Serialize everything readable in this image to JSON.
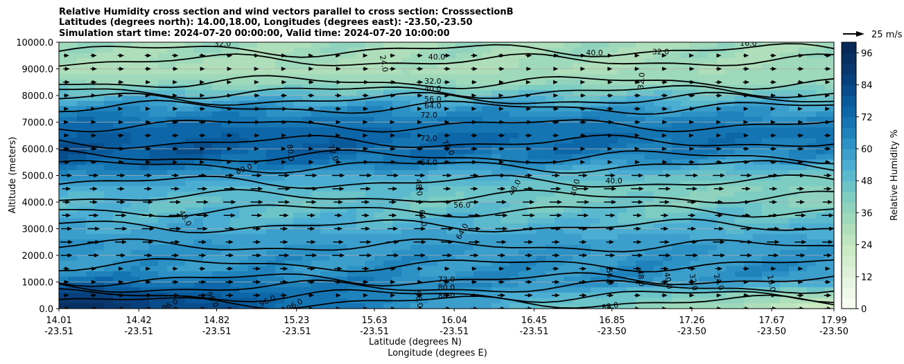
{
  "chart_data": {
    "type": "heatmap",
    "title_lines": [
      "Relative Humidity cross section and wind vectors parallel to cross section: CrosssectionB",
      "Latitudes (degrees north): 14.00,18.00, Longitudes (degrees east): -23.50,-23.50",
      "Simulation start time: 2024-07-20 00:00:00, Valid time: 2024-07-20 10:00:00"
    ],
    "ylabel": "Altitude (meters)",
    "xlabel_lat": "Latitude (degrees N)",
    "xlabel_lon": "Longitude (degrees E)",
    "ylim": [
      0,
      10000
    ],
    "y_ticks": [
      "0.0",
      "1000.0",
      "2000.0",
      "3000.0",
      "4000.0",
      "5000.0",
      "6000.0",
      "7000.0",
      "8000.0",
      "9000.0",
      "10000.0"
    ],
    "y_tick_values": [
      0,
      1000,
      2000,
      3000,
      4000,
      5000,
      6000,
      7000,
      8000,
      9000,
      10000
    ],
    "xlim": [
      14.01,
      17.99
    ],
    "x_ticks": [
      {
        "lat": "14.01",
        "lon": "-23.51",
        "value": 14.01
      },
      {
        "lat": "14.42",
        "lon": "-23.51",
        "value": 14.42
      },
      {
        "lat": "14.82",
        "lon": "-23.51",
        "value": 14.82
      },
      {
        "lat": "15.23",
        "lon": "-23.51",
        "value": 15.23
      },
      {
        "lat": "15.63",
        "lon": "-23.51",
        "value": 15.63
      },
      {
        "lat": "16.04",
        "lon": "-23.51",
        "value": 16.04
      },
      {
        "lat": "16.45",
        "lon": "-23.51",
        "value": 16.45
      },
      {
        "lat": "16.85",
        "lon": "-23.50",
        "value": 16.85
      },
      {
        "lat": "17.26",
        "lon": "-23.50",
        "value": 17.26
      },
      {
        "lat": "17.67",
        "lon": "-23.50",
        "value": 17.67
      },
      {
        "lat": "17.99",
        "lon": "-23.50",
        "value": 17.99
      }
    ],
    "grid": "horizontal",
    "colorbar": {
      "label": "Relative Humidity %",
      "min": 0,
      "max": 100,
      "step": 4,
      "ticks": [
        "0",
        "12",
        "24",
        "36",
        "48",
        "60",
        "72",
        "84",
        "96"
      ],
      "tick_values": [
        0,
        12,
        24,
        36,
        48,
        60,
        72,
        84,
        96
      ],
      "colors": [
        "#f7fcf0",
        "#eff9e9",
        "#e6f5e1",
        "#ddf1d8",
        "#d3eecd",
        "#c9eac3",
        "#bde5bf",
        "#afdfba",
        "#9fd9bb",
        "#8fd3bf",
        "#7ecdc2",
        "#6cc4c8",
        "#5bb9ce",
        "#4badd1",
        "#3c9fcb",
        "#2c91c4",
        "#1f82bb",
        "#1574b2",
        "#0c66a8",
        "#085a9b",
        "#084c8b",
        "#08407d",
        "#08386e",
        "#082f61",
        "#082858"
      ]
    },
    "quiver_key": {
      "label": "25 m/s",
      "speed": 25
    },
    "rh_profile": {
      "altitude": [
        0,
        500,
        1000,
        1500,
        2000,
        2500,
        3000,
        3500,
        4000,
        4500,
        5000,
        5500,
        6000,
        6500,
        7000,
        7500,
        8000,
        8500,
        9000,
        9500,
        10000
      ],
      "values_south": [
        96,
        88,
        72,
        60,
        62,
        60,
        56,
        52,
        50,
        56,
        64,
        76,
        80,
        76,
        72,
        64,
        52,
        36,
        30,
        32,
        34
      ],
      "values_north": [
        20,
        32,
        58,
        62,
        60,
        58,
        52,
        46,
        40,
        38,
        44,
        56,
        66,
        70,
        66,
        58,
        46,
        34,
        32,
        34,
        32
      ]
    },
    "contour_labels": [
      {
        "text": "32.0",
        "x": 14.85,
        "y": 9950,
        "rot": 0
      },
      {
        "text": "40.0",
        "x": 15.95,
        "y": 9450,
        "rot": 0
      },
      {
        "text": "40.0",
        "x": 16.76,
        "y": 9610,
        "rot": 0
      },
      {
        "text": "32.0",
        "x": 17.1,
        "y": 9650,
        "rot": 0
      },
      {
        "text": "16.0",
        "x": 17.55,
        "y": 9980,
        "rot": 0
      },
      {
        "text": "24.0",
        "x": 15.68,
        "y": 9200,
        "rot": 80
      },
      {
        "text": "32.0",
        "x": 17.0,
        "y": 8550,
        "rot": -85
      },
      {
        "text": "32.0",
        "x": 15.93,
        "y": 8550,
        "rot": 0
      },
      {
        "text": "40.0",
        "x": 15.93,
        "y": 8260,
        "rot": 0
      },
      {
        "text": "56.0",
        "x": 15.93,
        "y": 7870,
        "rot": 0
      },
      {
        "text": "64.0",
        "x": 15.93,
        "y": 7620,
        "rot": 0
      },
      {
        "text": "72.0",
        "x": 15.91,
        "y": 7270,
        "rot": 0
      },
      {
        "text": "72.0",
        "x": 15.91,
        "y": 6400,
        "rot": 0
      },
      {
        "text": "72.0",
        "x": 16.01,
        "y": 6050,
        "rot": 60
      },
      {
        "text": "72.0",
        "x": 15.42,
        "y": 5850,
        "rot": 70
      },
      {
        "text": "64.0",
        "x": 15.91,
        "y": 5500,
        "rot": 0
      },
      {
        "text": "80.0",
        "x": 14.96,
        "y": 5250,
        "rot": -20
      },
      {
        "text": "80.0",
        "x": 15.2,
        "y": 5850,
        "rot": 85
      },
      {
        "text": "48.0",
        "x": 15.86,
        "y": 4550,
        "rot": 85
      },
      {
        "text": "48.0",
        "x": 16.35,
        "y": 4550,
        "rot": -60
      },
      {
        "text": "40.0",
        "x": 16.66,
        "y": 4550,
        "rot": -75
      },
      {
        "text": "40.0",
        "x": 16.86,
        "y": 4800,
        "rot": 0
      },
      {
        "text": "56.0",
        "x": 16.08,
        "y": 3900,
        "rot": 0
      },
      {
        "text": "64.0",
        "x": 15.88,
        "y": 3400,
        "rot": 80
      },
      {
        "text": "64.0",
        "x": 16.08,
        "y": 2900,
        "rot": -60
      },
      {
        "text": "48.0",
        "x": 14.66,
        "y": 3400,
        "rot": 60
      },
      {
        "text": "72.0",
        "x": 16.0,
        "y": 1100,
        "rot": 0
      },
      {
        "text": "80.0",
        "x": 16.0,
        "y": 800,
        "rot": 0
      },
      {
        "text": "88.0",
        "x": 16.0,
        "y": 500,
        "rot": 0
      },
      {
        "text": "96.0",
        "x": 15.86,
        "y": 350,
        "rot": 80
      },
      {
        "text": "96.0",
        "x": 14.58,
        "y": 150,
        "rot": -30
      },
      {
        "text": "96.0",
        "x": 14.8,
        "y": 350,
        "rot": 60
      },
      {
        "text": "96.0",
        "x": 15.08,
        "y": 300,
        "rot": -25
      },
      {
        "text": "96.0",
        "x": 15.22,
        "y": 150,
        "rot": -30
      },
      {
        "text": "88.0",
        "x": 16.84,
        "y": 100,
        "rot": -10
      },
      {
        "text": "56.0",
        "x": 16.84,
        "y": 1200,
        "rot": 85
      },
      {
        "text": "48.0",
        "x": 17.0,
        "y": 1150,
        "rot": 85
      },
      {
        "text": "40.0",
        "x": 17.14,
        "y": 1050,
        "rot": 80
      },
      {
        "text": "32.0",
        "x": 17.27,
        "y": 1000,
        "rot": 80
      },
      {
        "text": "24.0",
        "x": 17.4,
        "y": 1000,
        "rot": 70
      },
      {
        "text": "16.0",
        "x": 17.67,
        "y": 950,
        "rot": 80
      }
    ]
  }
}
